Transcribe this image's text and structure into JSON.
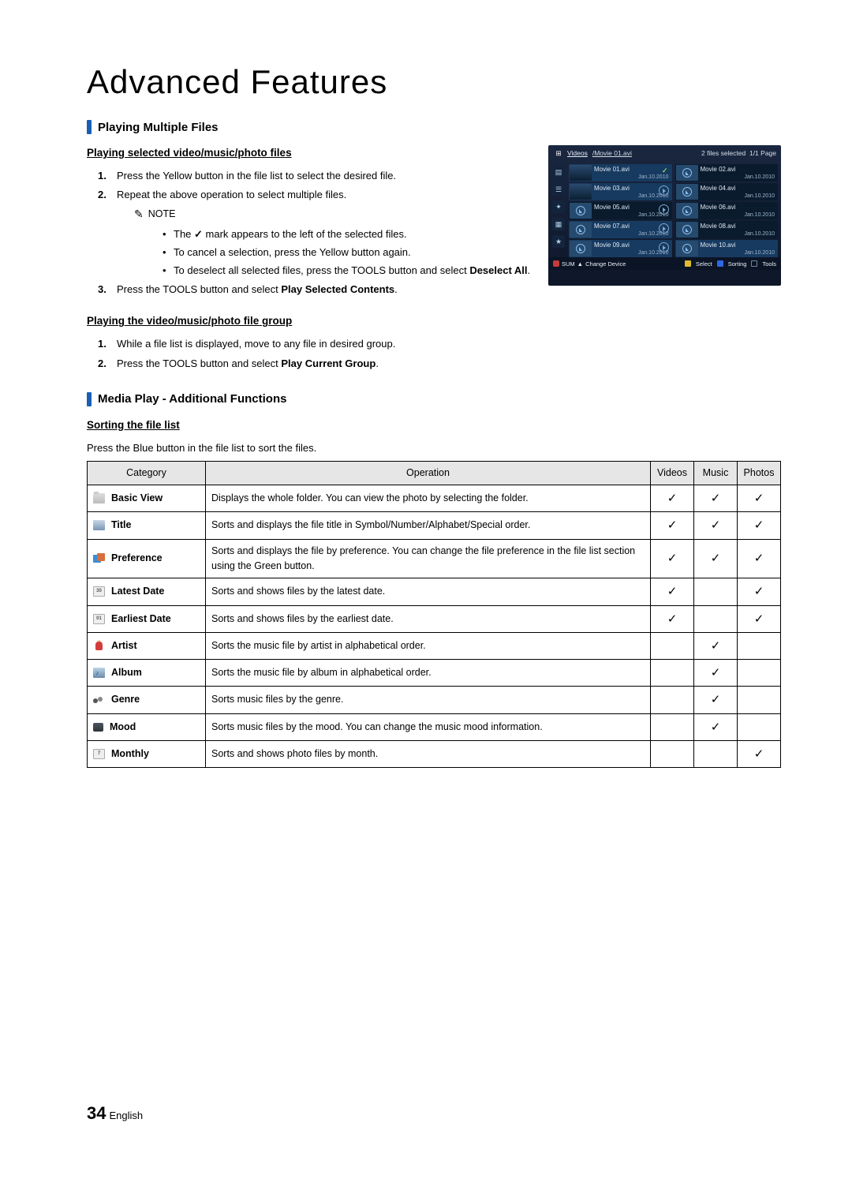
{
  "page_title": "Advanced Features",
  "section1": {
    "title": "Playing Multiple Files",
    "sub1": "Playing selected video/music/photo files",
    "steps1": [
      "Press the Yellow button in the file list to select the desired file.",
      "Repeat the above operation to select multiple files."
    ],
    "note_label": "NOTE",
    "note_bullets": [
      [
        "The ",
        " mark appears to the left of the selected files."
      ],
      "To cancel a selection, press the Yellow button again.",
      [
        "To deselect all selected files, press the ",
        "TOOLS",
        " button and select ",
        "Deselect All",
        "."
      ]
    ],
    "step3_pre": "Press the ",
    "step3_tools": "TOOLS",
    "step3_mid": " button and select ",
    "step3_bold": "Play Selected Contents",
    "step3_post": ".",
    "sub2": "Playing the video/music/photo file group",
    "steps2_1": "While a file list is displayed, move to any file in desired group.",
    "steps2_2_pre": "Press the ",
    "steps2_2_tools": "TOOLS",
    "steps2_2_mid": " button and select ",
    "steps2_2_bold": "Play Current Group",
    "steps2_2_post": "."
  },
  "browser": {
    "title": "Videos",
    "path": "/Movie 01.avi",
    "status": "2 files selected",
    "page": "1/1 Page",
    "tiles": [
      {
        "name": "Movie 01.avi",
        "date": "Jan.10.2010",
        "sel": true,
        "mark": true,
        "thumb": "img"
      },
      {
        "name": "Movie 02.avi",
        "date": "Jan.10.2010",
        "sel": false,
        "thumb": "ph"
      },
      {
        "name": "Movie 03.avi",
        "date": "Jan.10.2010",
        "sel": true,
        "thumb": "img",
        "pbtn": true
      },
      {
        "name": "Movie 04.avi",
        "date": "Jan.10.2010",
        "sel": false,
        "thumb": "ph"
      },
      {
        "name": "Movie 05.avi",
        "date": "Jan.10.2010",
        "sel": false,
        "thumb": "ph",
        "pbtn": true
      },
      {
        "name": "Movie 06.avi",
        "date": "Jan.10.2010",
        "sel": false,
        "thumb": "ph"
      },
      {
        "name": "Movie 07.avi",
        "date": "Jan.10.2010",
        "sel": true,
        "thumb": "ph",
        "pbtn": true
      },
      {
        "name": "Movie 08.avi",
        "date": "Jan.10.2010",
        "sel": false,
        "thumb": "ph"
      },
      {
        "name": "Movie 09.avi",
        "date": "Jan.10.2010",
        "sel": true,
        "thumb": "ph",
        "pbtn": true
      },
      {
        "name": "Movie 10.avi",
        "date": "Jan.10.2010",
        "sel": true,
        "thumb": "ph"
      }
    ],
    "footer_left1": "SUM",
    "footer_left2": "Change Device",
    "footer_select": "Select",
    "footer_sort": "Sorting",
    "footer_tools": "Tools"
  },
  "section2": {
    "title": "Media Play - Additional Functions",
    "sub": "Sorting the file list",
    "intro": "Press the Blue button in the file list to sort the files."
  },
  "table": {
    "headers": [
      "Category",
      "Operation",
      "Videos",
      "Music",
      "Photos"
    ],
    "rows": [
      {
        "cat": "Basic View",
        "ico": "folder",
        "op": "Displays the whole folder. You can view the photo by selecting the folder.",
        "v": true,
        "m": true,
        "p": true
      },
      {
        "cat": "Title",
        "ico": "title",
        "op": "Sorts and displays the file title in Symbol/Number/Alphabet/Special order.",
        "v": true,
        "m": true,
        "p": true
      },
      {
        "cat": "Preference",
        "ico": "pref",
        "op": "Sorts and displays the file by preference. You can change the file preference in the file list section using the Green button.",
        "v": true,
        "m": true,
        "p": true
      },
      {
        "cat": "Latest Date",
        "ico": "cal30",
        "op": "Sorts and shows files by the latest date.",
        "v": true,
        "m": false,
        "p": true
      },
      {
        "cat": "Earliest Date",
        "ico": "cal1",
        "op": "Sorts and shows files by the earliest date.",
        "v": true,
        "m": false,
        "p": true
      },
      {
        "cat": "Artist",
        "ico": "artist",
        "op": "Sorts the music file by artist in alphabetical order.",
        "v": false,
        "m": true,
        "p": false
      },
      {
        "cat": "Album",
        "ico": "album",
        "op": "Sorts the music file by album in alphabetical order.",
        "v": false,
        "m": true,
        "p": false
      },
      {
        "cat": "Genre",
        "ico": "genre",
        "op": "Sorts music files by the genre.",
        "v": false,
        "m": true,
        "p": false
      },
      {
        "cat": "Mood",
        "ico": "mood",
        "op": "Sorts music files by the mood. You can change the music mood information.",
        "v": false,
        "m": true,
        "p": false
      },
      {
        "cat": "Monthly",
        "ico": "month",
        "op": "Sorts and shows photo files by month.",
        "v": false,
        "m": false,
        "p": true
      }
    ]
  },
  "footer": {
    "num": "34",
    "lang": "English"
  },
  "checkmark": "✓"
}
